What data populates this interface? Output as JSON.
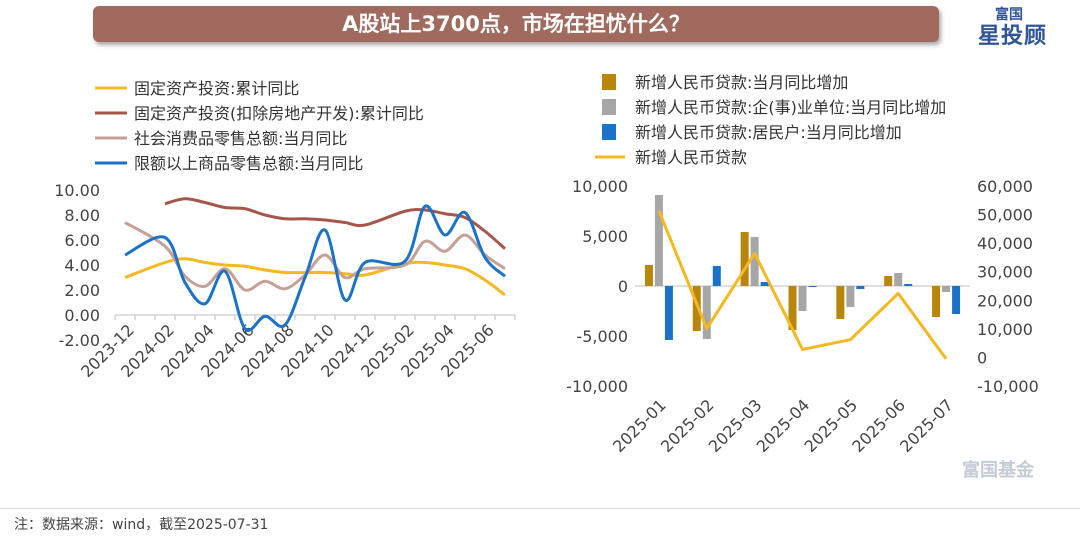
{
  "title": "A股站上3700点，市场在担忧什么？",
  "logo": {
    "top": "富国",
    "main": "星投顾"
  },
  "watermark": "富国基金",
  "footer": "注：数据来源：wind，截至2025-07-31",
  "colors": {
    "title_bg": "#a06a5e",
    "brand": "#2f5597"
  },
  "chart_data": [
    {
      "type": "line",
      "yticks": [
        "10.00",
        "8.00",
        "6.00",
        "4.00",
        "2.00",
        "0.00",
        "-2.00"
      ],
      "ylim": [
        -2,
        10
      ],
      "x": [
        "2023-12",
        "2024-01",
        "2024-02",
        "2024-03",
        "2024-04",
        "2024-05",
        "2024-06",
        "2024-07",
        "2024-08",
        "2024-09",
        "2024-10",
        "2024-11",
        "2024-12",
        "2025-01",
        "2025-02",
        "2025-03",
        "2025-04",
        "2025-05",
        "2025-06",
        "2025-07"
      ],
      "xticks": [
        "2023-12",
        "2024-02",
        "2024-04",
        "2024-06",
        "2024-08",
        "2024-10",
        "2024-12",
        "2025-02",
        "2025-04",
        "2025-06"
      ],
      "series": [
        {
          "name": "固定资产投资:累计同比",
          "color": "#f5b820",
          "values": [
            3.0,
            null,
            4.2,
            4.5,
            4.2,
            4.0,
            3.9,
            3.6,
            3.4,
            3.4,
            3.4,
            3.3,
            3.2,
            null,
            4.1,
            4.2,
            4.0,
            3.7,
            2.8,
            1.6
          ]
        },
        {
          "name": "固定资产投资(扣除房地产开发):累计同比",
          "color": "#a6574a",
          "values": [
            null,
            null,
            8.9,
            9.3,
            9.0,
            8.6,
            8.5,
            8.0,
            7.7,
            7.7,
            7.6,
            7.4,
            7.2,
            null,
            8.3,
            8.4,
            8.1,
            7.8,
            6.7,
            5.3
          ]
        },
        {
          "name": "社会消费品零售总额:当月同比",
          "color": "#c4a096",
          "values": [
            7.4,
            null,
            5.5,
            3.1,
            2.3,
            3.7,
            2.0,
            2.7,
            2.1,
            3.2,
            4.8,
            3.0,
            3.7,
            null,
            4.0,
            5.9,
            5.1,
            6.4,
            4.8,
            3.7
          ]
        },
        {
          "name": "限额以上商品零售总额:当月同比",
          "color": "#1a73c8",
          "values": [
            4.8,
            null,
            6.2,
            2.6,
            0.9,
            3.5,
            -1.1,
            -0.1,
            -0.8,
            3.0,
            6.8,
            1.2,
            4.2,
            null,
            4.3,
            8.7,
            6.4,
            8.2,
            4.6,
            3.1
          ]
        }
      ]
    },
    {
      "type": "bar",
      "categories": [
        "2025-01",
        "2025-02",
        "2025-03",
        "2025-04",
        "2025-05",
        "2025-06",
        "2025-07"
      ],
      "yticks_left": [
        "10,000",
        "5,000",
        "0",
        "-5,000",
        "-10,000"
      ],
      "ylim_left": [
        -10000,
        10000
      ],
      "yticks_right": [
        "60,000",
        "50,000",
        "40,000",
        "30,000",
        "20,000",
        "10,000",
        "0",
        "-10,000"
      ],
      "ylim_right": [
        -10000,
        60000
      ],
      "series": [
        {
          "name": "新增人民币贷款:当月同比增加",
          "color": "#b8860b",
          "axis": "left",
          "values": [
            2100,
            -4500,
            5400,
            -4400,
            -3300,
            1000,
            -3100
          ]
        },
        {
          "name": "新增人民币贷款:企(事)业单位:当月同比增加",
          "color": "#a6a6a6",
          "axis": "left",
          "values": [
            9100,
            -5300,
            4900,
            -2500,
            -2100,
            1300,
            -600
          ]
        },
        {
          "name": "新增人民币贷款:居民户:当月同比增加",
          "color": "#1a73c8",
          "axis": "left",
          "values": [
            -5400,
            2000,
            400,
            -100,
            -300,
            200,
            -2800
          ]
        },
        {
          "name": "新增人民币贷款",
          "color": "#f5b820",
          "axis": "right",
          "type": "line",
          "values": [
            51300,
            10100,
            36400,
            2800,
            6200,
            22400,
            -500
          ]
        }
      ]
    }
  ]
}
